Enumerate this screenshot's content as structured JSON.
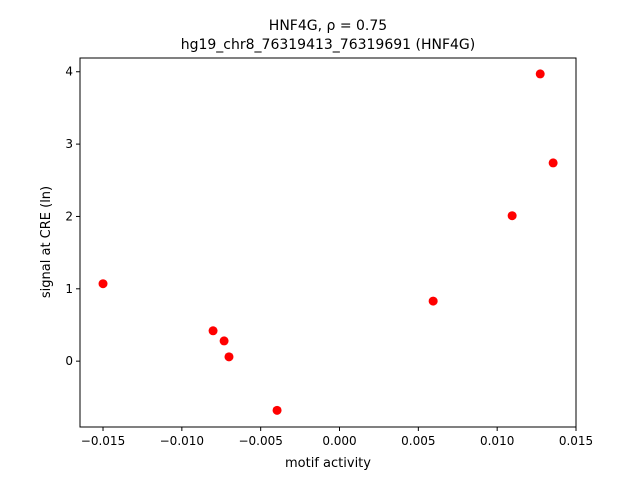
{
  "chart_data": {
    "type": "scatter",
    "title": "HNF4G, ρ = 0.75",
    "subtitle": "hg19_chr8_76319413_76319691 (HNF4G)",
    "x_label": "motif activity",
    "y_label": "signal at CRE (ln)",
    "color": "#ff0000",
    "x": [
      -0.015,
      -0.00802,
      -0.00732,
      -0.00701,
      -0.00396,
      0.00594,
      0.01095,
      0.01273,
      0.01355
    ],
    "y": [
      1.07,
      0.42,
      0.28,
      0.06,
      -0.68,
      0.83,
      2.01,
      3.97,
      2.74
    ],
    "xlim": [
      -0.01646,
      0.015
    ],
    "ylim": [
      -0.91,
      4.19
    ],
    "xticks": [
      {
        "value": -0.015,
        "label": "−0.015"
      },
      {
        "value": -0.01,
        "label": "−0.010"
      },
      {
        "value": -0.005,
        "label": "−0.005"
      },
      {
        "value": 0,
        "label": "0.000"
      },
      0.005,
      {
        "value": 0.01,
        "label": "0.010"
      },
      0.015
    ],
    "yticks": [
      0,
      1,
      2,
      3,
      4
    ]
  }
}
